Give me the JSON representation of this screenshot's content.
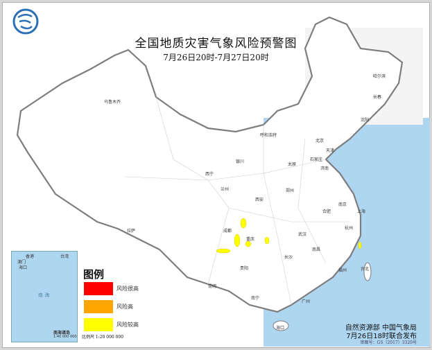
{
  "header": {
    "title": "全国地质灾害气象风险预警图",
    "subtitle": "7月26日20时-7月27日20时",
    "logo": "cma-logo"
  },
  "legend": {
    "title": "图例",
    "items": [
      {
        "label": "风险很高",
        "color": "#ff0000"
      },
      {
        "label": "风险高",
        "color": "#ffa500"
      },
      {
        "label": "风险较高",
        "color": "#ffff00"
      }
    ],
    "scale": "比例尺    1:20 000 000"
  },
  "inset": {
    "sea": "南  海",
    "islands": "南海诸岛",
    "scale": "1:40 000 000",
    "labels": [
      "香港",
      "澳门",
      "海口",
      "台湾"
    ]
  },
  "cities": [
    {
      "name": "乌鲁木齐"
    },
    {
      "name": "拉萨"
    },
    {
      "name": "西宁"
    },
    {
      "name": "兰州"
    },
    {
      "name": "银川"
    },
    {
      "name": "呼和浩特"
    },
    {
      "name": "北京"
    },
    {
      "name": "天津"
    },
    {
      "name": "石家庄"
    },
    {
      "name": "太原"
    },
    {
      "name": "济南"
    },
    {
      "name": "西安"
    },
    {
      "name": "郑州"
    },
    {
      "name": "成都"
    },
    {
      "name": "重庆"
    },
    {
      "name": "武汉"
    },
    {
      "name": "合肥"
    },
    {
      "name": "南京"
    },
    {
      "name": "上海"
    },
    {
      "name": "杭州"
    },
    {
      "name": "长沙"
    },
    {
      "name": "南昌"
    },
    {
      "name": "福州"
    },
    {
      "name": "贵阳"
    },
    {
      "name": "昆明"
    },
    {
      "name": "南宁"
    },
    {
      "name": "广州"
    },
    {
      "name": "台北"
    },
    {
      "name": "沈阳"
    },
    {
      "name": "长春"
    },
    {
      "name": "哈尔滨"
    },
    {
      "name": "海口"
    }
  ],
  "footer": {
    "issuer": "自然资源部  中国气象局",
    "issued": "7月26日18时联合发布",
    "approval": "审图号：GS（2017）3320号"
  },
  "colors": {
    "sea": "#aed6f1",
    "land": "#ffffff",
    "border": "#808080",
    "warning_yellow": "#ffff00"
  }
}
